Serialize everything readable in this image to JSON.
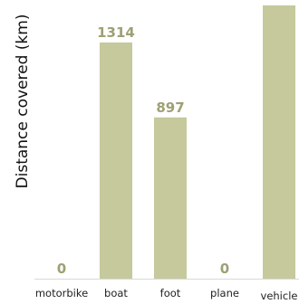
{
  "chart_data": {
    "type": "bar",
    "title": "",
    "ylabel": "Distance covered (km)",
    "xlabel": "",
    "categories": [
      "motorbike",
      "boat",
      "foot",
      "plane",
      "vehicle"
    ],
    "values": [
      0,
      1314,
      897,
      0,
      1520
    ],
    "data_labels": [
      "0",
      "1314",
      "897",
      "0",
      ""
    ],
    "ylim": [
      0,
      1520
    ],
    "grid": false,
    "legend": "none",
    "bar_color": "#c5c99c",
    "label_color": "#9ea074",
    "axis_color": "#d9d9d9"
  }
}
